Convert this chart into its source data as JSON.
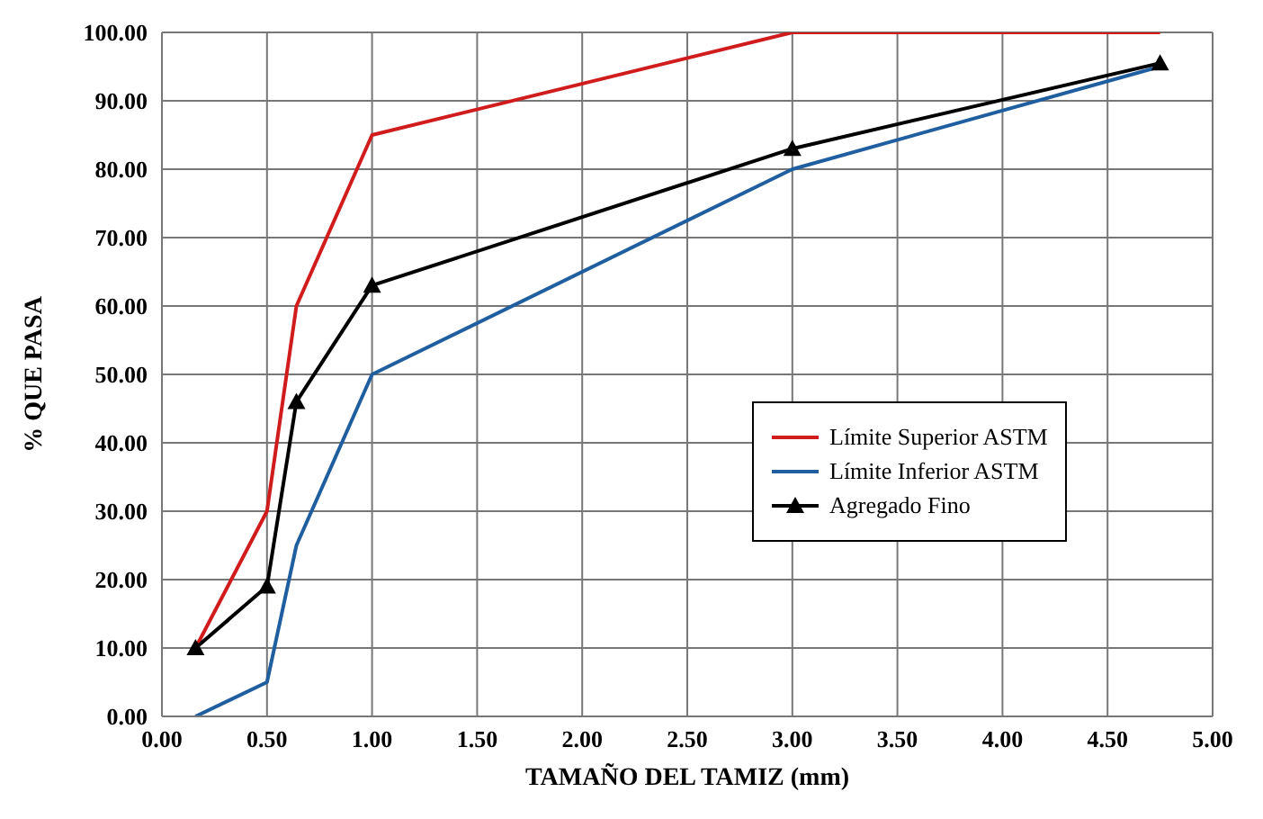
{
  "chart_data": {
    "type": "line",
    "xlabel": "TAMAÑO DEL TAMIZ (mm)",
    "ylabel": "% QUE PASA",
    "x": [
      0.16,
      0.5,
      0.64,
      1.0,
      3.0,
      4.75
    ],
    "series": [
      {
        "name": "Límite Superior ASTM",
        "color": "#d01c1c",
        "values": [
          10,
          30,
          60,
          85,
          100,
          100
        ],
        "marker": "none"
      },
      {
        "name": "Límite Inferior ASTM",
        "color": "#1f5fa0",
        "values": [
          0,
          5,
          25,
          50,
          80,
          95
        ],
        "marker": "none"
      },
      {
        "name": "Agregado Fino",
        "color": "#000000",
        "values": [
          10,
          19,
          46,
          63,
          83,
          95.5
        ],
        "marker": "triangle"
      }
    ],
    "xlim": [
      0,
      5
    ],
    "xticks": [
      {
        "value": 0,
        "label": "0.00"
      },
      {
        "value": 0.5,
        "label": "0.50"
      },
      {
        "value": 1,
        "label": "1.00"
      },
      {
        "value": 1.5,
        "label": "1.50"
      },
      {
        "value": 2,
        "label": "2.00"
      },
      {
        "value": 2.5,
        "label": "2.50"
      },
      {
        "value": 3,
        "label": "3.00"
      },
      {
        "value": 3.5,
        "label": "3.50"
      },
      {
        "value": 4,
        "label": "4.00"
      },
      {
        "value": 4.5,
        "label": "4.50"
      },
      {
        "value": 5,
        "label": "5.00"
      }
    ],
    "ylim": [
      0,
      100
    ],
    "yticks": [
      {
        "value": 0,
        "label": "0.00"
      },
      {
        "value": 10,
        "label": "10.00"
      },
      {
        "value": 20,
        "label": "20.00"
      },
      {
        "value": 30,
        "label": "30.00"
      },
      {
        "value": 40,
        "label": "40.00"
      },
      {
        "value": 50,
        "label": "50.00"
      },
      {
        "value": 60,
        "label": "60.00"
      },
      {
        "value": 70,
        "label": "70.00"
      },
      {
        "value": 80,
        "label": "80.00"
      },
      {
        "value": 90,
        "label": "90.00"
      },
      {
        "value": 100,
        "label": "100.00"
      }
    ],
    "grid": true,
    "legend": "right",
    "line_style": "solid"
  }
}
